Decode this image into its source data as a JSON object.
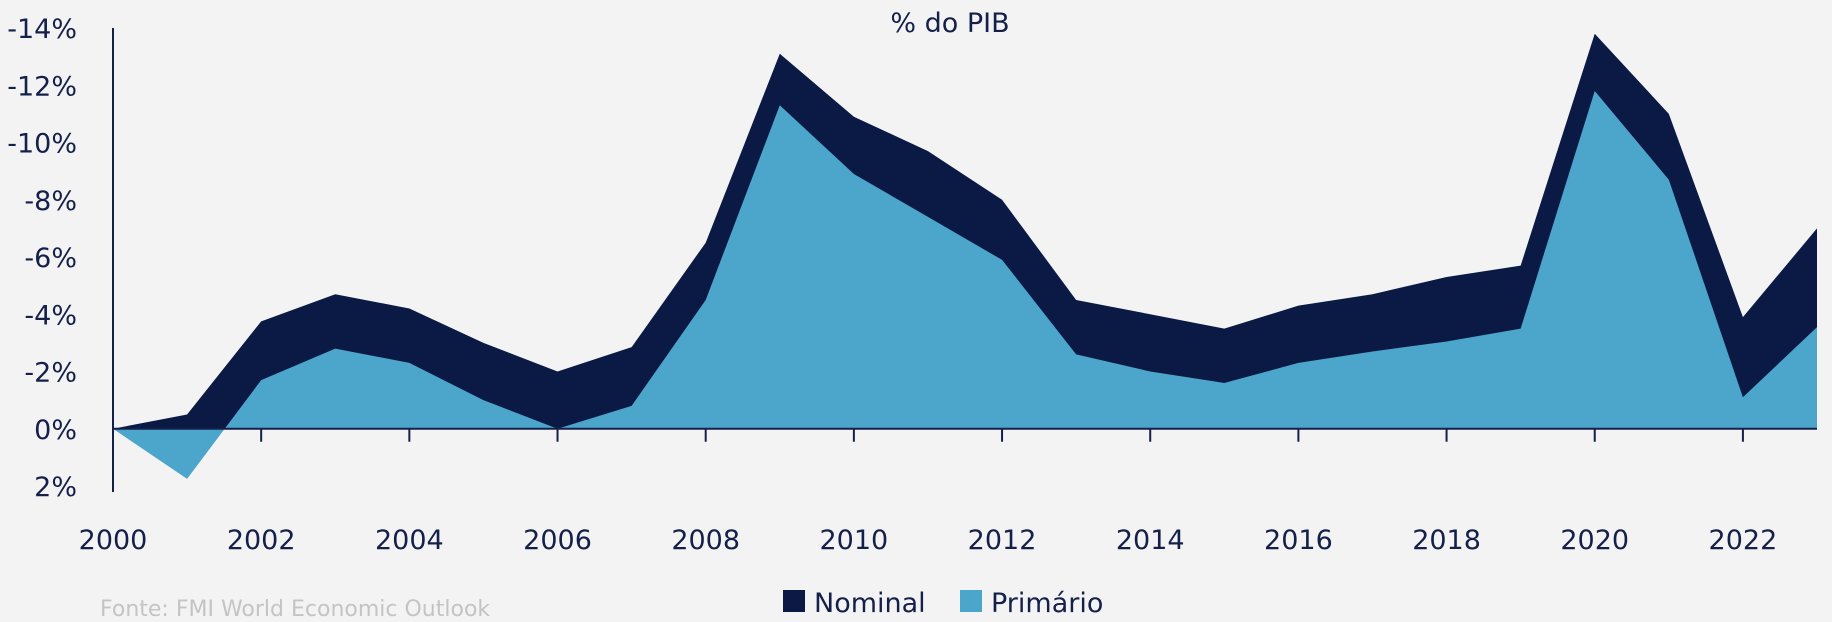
{
  "chart_data": {
    "type": "area",
    "title": "% do PIB",
    "x": [
      2000,
      2001,
      2002,
      2003,
      2004,
      2005,
      2006,
      2007,
      2008,
      2009,
      2010,
      2011,
      2012,
      2013,
      2014,
      2015,
      2016,
      2017,
      2018,
      2019,
      2020,
      2021,
      2022,
      2023
    ],
    "series": [
      {
        "name": "Nominal",
        "color": "#0a1a45",
        "values": [
          0,
          -0.5,
          -3.75,
          -4.7,
          -4.2,
          -3.0,
          -2.0,
          -2.85,
          -6.5,
          -13.1,
          -10.9,
          -9.7,
          -8.0,
          -4.5,
          -4.0,
          -3.5,
          -4.3,
          -4.7,
          -5.3,
          -5.7,
          -13.8,
          -11.0,
          -3.9,
          -7.0
        ]
      },
      {
        "name": "Primário",
        "color": "#4ca5cb",
        "values": [
          0,
          1.75,
          -1.7,
          -2.8,
          -2.3,
          -1.0,
          0,
          -0.8,
          -4.5,
          -11.3,
          -8.9,
          -7.4,
          -5.9,
          -2.6,
          -2.0,
          -1.6,
          -2.3,
          -2.7,
          -3.05,
          -3.5,
          -11.8,
          -8.7,
          -1.1,
          -3.55
        ]
      }
    ],
    "xlim": [
      2000,
      2023
    ],
    "xticks": [
      2000,
      2002,
      2004,
      2006,
      2008,
      2010,
      2012,
      2014,
      2016,
      2018,
      2020,
      2022
    ],
    "ylim": [
      2,
      -14
    ],
    "y_inverted": true,
    "yticks": [
      {
        "value": -14,
        "label": "-14%"
      },
      {
        "value": -12,
        "label": "-12%"
      },
      {
        "value": -10,
        "label": "-10%"
      },
      {
        "value": -8,
        "label": "-8%"
      },
      {
        "value": -6,
        "label": "-6%"
      },
      {
        "value": -4,
        "label": "-4%"
      },
      {
        "value": -2,
        "label": "-2%"
      },
      {
        "value": 0,
        "label": "0%"
      },
      {
        "value": 2,
        "label": "2%"
      }
    ],
    "legend": "bottom",
    "source": "Fonte: FMI World Economic Outlook"
  }
}
